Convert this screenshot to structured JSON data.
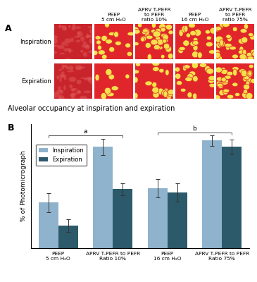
{
  "panel_a": {
    "label": "A",
    "row_labels": [
      "Inspiration",
      "Expiration"
    ],
    "column_labels": [
      null,
      "PEEP\n5 cm H₂O",
      "APRV T-PEFR\nto PEFR\nratio 10%",
      "PEEP\n16 cm H₂O",
      "APRV T-PEFR\nto PEFR\nratio 75%"
    ]
  },
  "chart_data": {
    "type": "bar",
    "label": "B",
    "title": "Alveolar occupancy at inspiration and expiration",
    "y_label": "% of Photomicrograph",
    "categories": [
      "PEEP\n5 cm H₂O",
      "APRV T-PEFR to PEFR\nRatio 10%",
      "PEEP\n16 cm H₂O",
      "APRV T-PEFR to PEFR\nRatio 75%"
    ],
    "series": [
      {
        "name": "Inspiration",
        "color": "#8fb3cc",
        "values": [
          22,
          49,
          29,
          52
        ],
        "errors": [
          4.5,
          4,
          4.5,
          2.5
        ]
      },
      {
        "name": "Expiration",
        "color": "#2c5a6a",
        "values": [
          11,
          28.5,
          27,
          49
        ],
        "errors": [
          3,
          3,
          4.5,
          3.5
        ]
      }
    ],
    "ylim": [
      0,
      60
    ],
    "tick_labels": "x",
    "legend": "upper left",
    "grid": false,
    "annotations": [
      {
        "text": "a",
        "groups": [
          0,
          1
        ]
      },
      {
        "text": "b",
        "groups": [
          2,
          3
        ]
      }
    ]
  }
}
